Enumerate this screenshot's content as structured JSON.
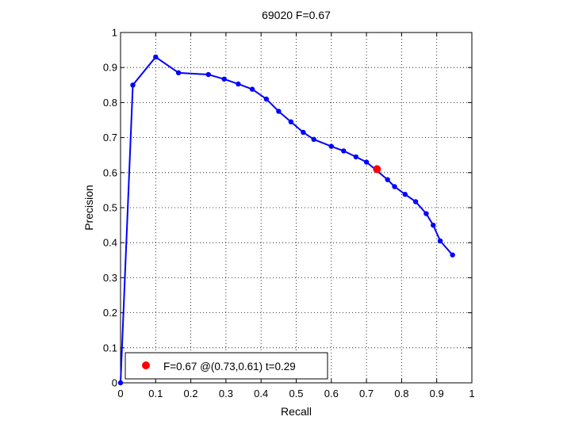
{
  "chart_data": {
    "type": "line",
    "title": "69020 F=0.67",
    "xlabel": "Recall",
    "ylabel": "Precision",
    "xlim": [
      0,
      1
    ],
    "ylim": [
      0,
      1
    ],
    "x_ticks": [
      "0",
      "0.1",
      "0.2",
      "0.3",
      "0.4",
      "0.5",
      "0.6",
      "0.7",
      "0.8",
      "0.9",
      "1"
    ],
    "y_ticks": [
      "0",
      "0.1",
      "0.2",
      "0.3",
      "0.4",
      "0.5",
      "0.6",
      "0.7",
      "0.8",
      "0.9",
      "1"
    ],
    "grid": true,
    "grid_style": "dotted",
    "legend_position": "bottom-left",
    "series": [
      {
        "color": "#0000ff",
        "x": [
          0.0,
          0.035,
          0.1,
          0.165,
          0.25,
          0.295,
          0.335,
          0.375,
          0.415,
          0.45,
          0.485,
          0.52,
          0.55,
          0.6,
          0.635,
          0.67,
          0.7,
          0.76,
          0.78,
          0.81,
          0.84,
          0.87,
          0.89,
          0.91,
          0.945
        ],
        "y": [
          0.0,
          0.85,
          0.93,
          0.885,
          0.88,
          0.867,
          0.853,
          0.838,
          0.81,
          0.775,
          0.745,
          0.715,
          0.695,
          0.675,
          0.662,
          0.645,
          0.63,
          0.58,
          0.56,
          0.538,
          0.517,
          0.483,
          0.45,
          0.405,
          0.365
        ]
      }
    ],
    "highlight_point": {
      "x": 0.73,
      "y": 0.61,
      "color": "#ff0000"
    },
    "legend": {
      "text": "F=0.67 @(0.73,0.61) t=0.29",
      "marker_color": "#ff0000"
    }
  }
}
